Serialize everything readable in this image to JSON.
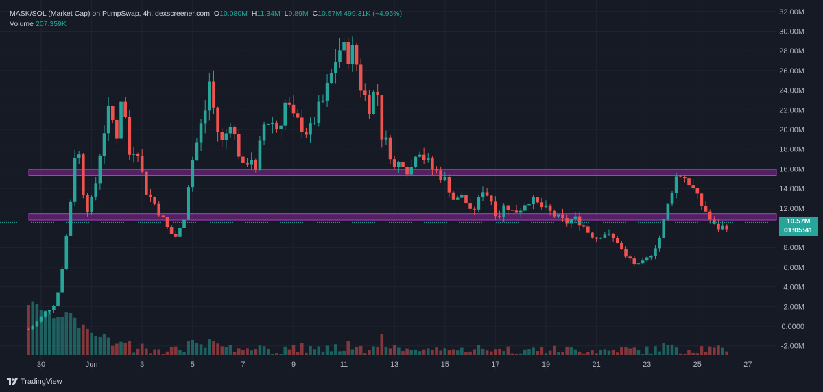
{
  "legend": {
    "symbol": "MASK/SOL (Market Cap) on PumpSwap, 4h, dexscreener.com",
    "o_label": "O",
    "o_value": "10.080M",
    "h_label": "H",
    "h_value": "11.34M",
    "l_label": "L",
    "l_value": "9.89M",
    "c_label": "C",
    "c_value": "10.57M",
    "change": "499.31K (+4.95%)",
    "volume_label": "Volume",
    "volume_value": "207.359K"
  },
  "price_tag": {
    "value": "10.57M",
    "countdown": "01:05:41"
  },
  "branding": {
    "name": "TradingView"
  },
  "colors": {
    "up": "#26a69a",
    "down": "#ef5350",
    "zone": "#9c27b0",
    "background": "#161a25"
  },
  "chart_data": {
    "type": "candlestick",
    "interval": "4h",
    "y_axis": {
      "unit": "M",
      "range": [
        -2.5,
        32.5
      ],
      "ticks": [
        "32.00M",
        "30.00M",
        "28.00M",
        "26.00M",
        "24.00M",
        "22.00M",
        "20.00M",
        "18.00M",
        "16.00M",
        "14.00M",
        "12.00M",
        "10.00M",
        "8.00M",
        "6.00M",
        "4.00M",
        "2.00M",
        "0.0000",
        "-2.00M"
      ],
      "tick_values": [
        32,
        30,
        28,
        26,
        24,
        22,
        20,
        18,
        16,
        14,
        12,
        10,
        8,
        6,
        4,
        2,
        0,
        -2
      ]
    },
    "x_axis": {
      "labels": [
        "30",
        "Jun",
        "3",
        "5",
        "7",
        "9",
        "11",
        "13",
        "15",
        "17",
        "19",
        "21",
        "23",
        "25",
        "27"
      ],
      "label_days": [
        30,
        32,
        34,
        36,
        38,
        40,
        42,
        44,
        46,
        48,
        50,
        52,
        54,
        56,
        58
      ]
    },
    "zones": [
      {
        "low": 15.3,
        "high": 15.95
      },
      {
        "low": 10.8,
        "high": 11.45
      }
    ],
    "last_price": 10.57,
    "key_points": [
      {
        "day": 29.5,
        "value": -0.3
      },
      {
        "day": 29.8,
        "value": 0.3
      },
      {
        "day": 30.2,
        "value": 1.5
      },
      {
        "day": 30.6,
        "value": 2.5
      },
      {
        "day": 30.9,
        "value": 7.0
      },
      {
        "day": 31.2,
        "value": 13.5
      },
      {
        "day": 31.4,
        "value": 19.5
      },
      {
        "day": 31.7,
        "value": 13.0
      },
      {
        "day": 31.9,
        "value": 11.5
      },
      {
        "day": 32.2,
        "value": 15.0
      },
      {
        "day": 32.4,
        "value": 19.0
      },
      {
        "day": 32.7,
        "value": 22.0
      },
      {
        "day": 33.0,
        "value": 19.5
      },
      {
        "day": 33.2,
        "value": 24.0
      },
      {
        "day": 33.5,
        "value": 17.5
      },
      {
        "day": 33.8,
        "value": 18.5
      },
      {
        "day": 34.1,
        "value": 14.0
      },
      {
        "day": 34.5,
        "value": 12.5
      },
      {
        "day": 34.8,
        "value": 11.0
      },
      {
        "day": 35.1,
        "value": 9.5
      },
      {
        "day": 35.4,
        "value": 9.0
      },
      {
        "day": 35.7,
        "value": 11.5
      },
      {
        "day": 35.9,
        "value": 16.0
      },
      {
        "day": 36.2,
        "value": 19.0
      },
      {
        "day": 36.5,
        "value": 22.0
      },
      {
        "day": 36.7,
        "value": 25.5
      },
      {
        "day": 36.9,
        "value": 20.5
      },
      {
        "day": 37.2,
        "value": 18.5
      },
      {
        "day": 37.5,
        "value": 21.0
      },
      {
        "day": 37.8,
        "value": 18.0
      },
      {
        "day": 38.0,
        "value": 16.0
      },
      {
        "day": 38.3,
        "value": 17.5
      },
      {
        "day": 38.5,
        "value": 15.5
      },
      {
        "day": 38.8,
        "value": 20.5
      },
      {
        "day": 39.1,
        "value": 21.0
      },
      {
        "day": 39.4,
        "value": 20.0
      },
      {
        "day": 39.7,
        "value": 23.0
      },
      {
        "day": 40.0,
        "value": 21.0
      },
      {
        "day": 40.3,
        "value": 20.5
      },
      {
        "day": 40.6,
        "value": 19.5
      },
      {
        "day": 40.9,
        "value": 21.5
      },
      {
        "day": 41.2,
        "value": 23.0
      },
      {
        "day": 41.5,
        "value": 25.5
      },
      {
        "day": 41.7,
        "value": 27.5
      },
      {
        "day": 41.9,
        "value": 28.5
      },
      {
        "day": 42.1,
        "value": 27.5
      },
      {
        "day": 42.4,
        "value": 28.0
      },
      {
        "day": 42.7,
        "value": 24.0
      },
      {
        "day": 43.0,
        "value": 22.5
      },
      {
        "day": 43.3,
        "value": 24.5
      },
      {
        "day": 43.5,
        "value": 19.5
      },
      {
        "day": 43.8,
        "value": 18.0
      },
      {
        "day": 44.0,
        "value": 16.0
      },
      {
        "day": 44.3,
        "value": 17.0
      },
      {
        "day": 44.6,
        "value": 15.5
      },
      {
        "day": 44.9,
        "value": 18.5
      },
      {
        "day": 45.2,
        "value": 17.0
      },
      {
        "day": 45.5,
        "value": 16.0
      },
      {
        "day": 45.8,
        "value": 15.5
      },
      {
        "day": 46.1,
        "value": 14.5
      },
      {
        "day": 46.4,
        "value": 12.5
      },
      {
        "day": 46.7,
        "value": 13.5
      },
      {
        "day": 47.0,
        "value": 11.5
      },
      {
        "day": 47.3,
        "value": 12.5
      },
      {
        "day": 47.5,
        "value": 14.0
      },
      {
        "day": 47.8,
        "value": 13.0
      },
      {
        "day": 48.1,
        "value": 11.0
      },
      {
        "day": 48.4,
        "value": 12.5
      },
      {
        "day": 48.7,
        "value": 11.5
      },
      {
        "day": 49.0,
        "value": 12.0
      },
      {
        "day": 49.3,
        "value": 13.0
      },
      {
        "day": 49.6,
        "value": 12.5
      },
      {
        "day": 49.9,
        "value": 12.0
      },
      {
        "day": 50.2,
        "value": 11.5
      },
      {
        "day": 50.5,
        "value": 11.0
      },
      {
        "day": 50.8,
        "value": 10.5
      },
      {
        "day": 51.1,
        "value": 11.0
      },
      {
        "day": 51.4,
        "value": 10.5
      },
      {
        "day": 51.7,
        "value": 9.5
      },
      {
        "day": 52.0,
        "value": 9.0
      },
      {
        "day": 52.3,
        "value": 9.5
      },
      {
        "day": 52.6,
        "value": 9.0
      },
      {
        "day": 52.9,
        "value": 8.5
      },
      {
        "day": 53.1,
        "value": 7.0
      },
      {
        "day": 53.4,
        "value": 6.8
      },
      {
        "day": 53.6,
        "value": 6.0
      },
      {
        "day": 53.9,
        "value": 6.5
      },
      {
        "day": 54.2,
        "value": 7.5
      },
      {
        "day": 54.5,
        "value": 9.0
      },
      {
        "day": 54.7,
        "value": 11.0
      },
      {
        "day": 54.9,
        "value": 13.0
      },
      {
        "day": 55.1,
        "value": 15.0
      },
      {
        "day": 55.3,
        "value": 15.5
      },
      {
        "day": 55.6,
        "value": 15.0
      },
      {
        "day": 55.8,
        "value": 14.0
      },
      {
        "day": 56.1,
        "value": 12.5
      },
      {
        "day": 56.4,
        "value": 11.5
      },
      {
        "day": 56.6,
        "value": 10.2
      },
      {
        "day": 56.9,
        "value": 10.0
      },
      {
        "day": 57.1,
        "value": 10.1
      },
      {
        "day": 57.3,
        "value": 10.57
      }
    ]
  }
}
